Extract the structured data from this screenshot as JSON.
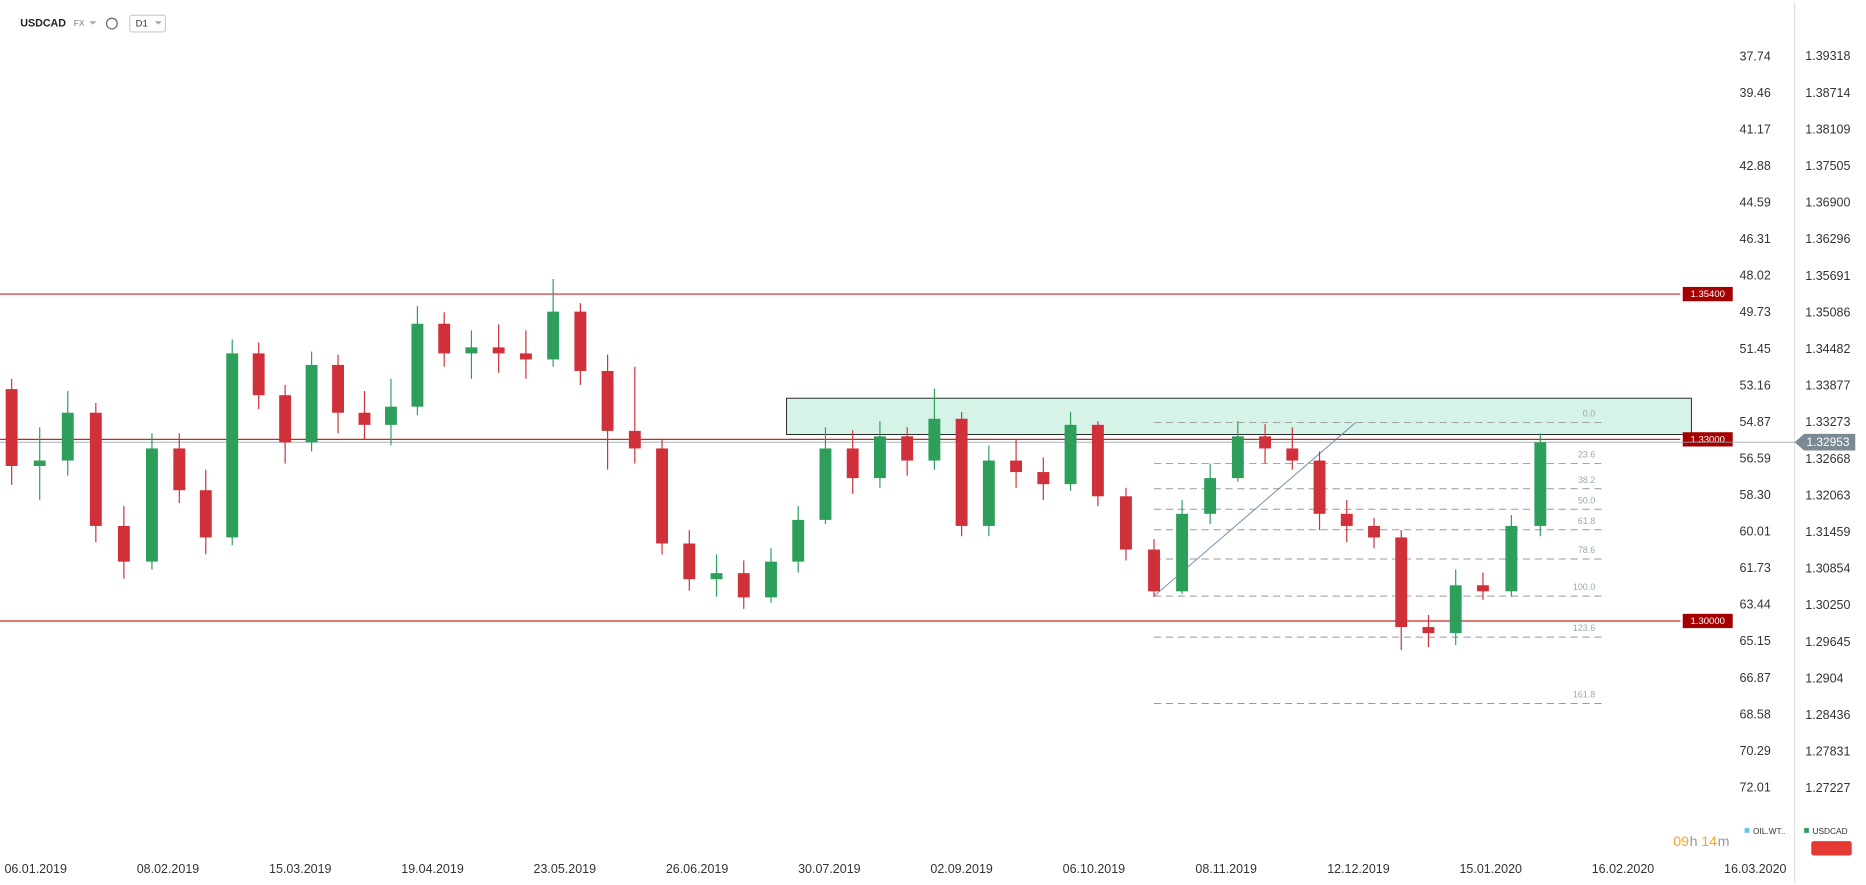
{
  "header": {
    "symbol": "USDCAD",
    "market": "FX",
    "interval": "D1"
  },
  "chart_data": {
    "type": "candlestick",
    "x": [
      "2018-12-31",
      "2019-01-07",
      "2019-01-14",
      "2019-01-21",
      "2019-01-28",
      "2019-02-04",
      "2019-02-11",
      "2019-02-18",
      "2019-02-25",
      "2019-03-04",
      "2019-03-11",
      "2019-03-18",
      "2019-03-25",
      "2019-04-01",
      "2019-04-08",
      "2019-04-15",
      "2019-04-22",
      "2019-04-29",
      "2019-05-06",
      "2019-05-13",
      "2019-05-20",
      "2019-05-27",
      "2019-06-03",
      "2019-06-10",
      "2019-06-17",
      "2019-06-24",
      "2019-07-01",
      "2019-07-08",
      "2019-07-15",
      "2019-07-22",
      "2019-07-29",
      "2019-08-05",
      "2019-08-12",
      "2019-08-19",
      "2019-08-26",
      "2019-09-02",
      "2019-09-09",
      "2019-09-16",
      "2019-09-23",
      "2019-09-30",
      "2019-10-07",
      "2019-10-14",
      "2019-10-21",
      "2019-10-28",
      "2019-11-04",
      "2019-11-11",
      "2019-11-18",
      "2019-11-25",
      "2019-12-02",
      "2019-12-09",
      "2019-12-16",
      "2019-12-23",
      "2019-12-30",
      "2020-01-06",
      "2020-01-13",
      "2020-01-20",
      "2020-01-27"
    ],
    "series": [
      {
        "color": "#2e9e5b",
        "down_color": "#d0303a",
        "open": [
          1.3383,
          1.3256,
          1.3265,
          1.3344,
          1.3157,
          1.3098,
          1.3285,
          1.3216,
          1.3138,
          1.3442,
          1.3373,
          1.3295,
          1.3423,
          1.3344,
          1.3324,
          1.3354,
          1.3491,
          1.3442,
          1.3452,
          1.3442,
          1.3432,
          1.3511,
          1.3413,
          1.3314,
          1.3285,
          1.3128,
          1.3069,
          1.3079,
          1.3039,
          1.3098,
          1.3167,
          1.3285,
          1.3236,
          1.3305,
          1.3265,
          1.3334,
          1.3157,
          1.3265,
          1.3246,
          1.3226,
          1.3324,
          1.3206,
          1.3118,
          1.3049,
          1.3177,
          1.3236,
          1.3305,
          1.3285,
          1.3265,
          1.3177,
          1.3157,
          1.3138,
          1.299,
          1.298,
          1.3059,
          1.3049,
          1.3157
        ],
        "high": [
          1.34,
          1.332,
          1.338,
          1.336,
          1.319,
          1.331,
          1.331,
          1.325,
          1.3465,
          1.346,
          1.339,
          1.3445,
          1.344,
          1.338,
          1.34,
          1.352,
          1.351,
          1.348,
          1.349,
          1.348,
          1.3565,
          1.3525,
          1.344,
          1.342,
          1.33,
          1.315,
          1.311,
          1.31,
          1.312,
          1.319,
          1.332,
          1.3315,
          1.333,
          1.332,
          1.3384,
          1.3345,
          1.329,
          1.33,
          1.327,
          1.3345,
          1.333,
          1.322,
          1.3135,
          1.32,
          1.326,
          1.333,
          1.3325,
          1.332,
          1.328,
          1.32,
          1.317,
          1.315,
          1.301,
          1.3085,
          1.308,
          1.3175,
          1.331
        ],
        "low": [
          1.3225,
          1.32,
          1.324,
          1.313,
          1.307,
          1.3085,
          1.3195,
          1.311,
          1.3125,
          1.335,
          1.326,
          1.328,
          1.331,
          1.33,
          1.329,
          1.334,
          1.342,
          1.34,
          1.341,
          1.34,
          1.342,
          1.339,
          1.325,
          1.326,
          1.311,
          1.305,
          1.304,
          1.302,
          1.303,
          1.308,
          1.316,
          1.321,
          1.322,
          1.324,
          1.325,
          1.314,
          1.314,
          1.322,
          1.32,
          1.3215,
          1.319,
          1.31,
          1.304,
          1.3045,
          1.316,
          1.323,
          1.326,
          1.325,
          1.315,
          1.313,
          1.312,
          1.2952,
          1.2957,
          1.296,
          1.3035,
          1.304,
          1.314
        ],
        "close": [
          1.3256,
          1.3265,
          1.3344,
          1.3157,
          1.3098,
          1.3285,
          1.3216,
          1.3138,
          1.3442,
          1.3373,
          1.3295,
          1.3423,
          1.3344,
          1.3324,
          1.3354,
          1.3491,
          1.3442,
          1.3452,
          1.3442,
          1.3432,
          1.3511,
          1.3413,
          1.3314,
          1.3285,
          1.3128,
          1.3069,
          1.3079,
          1.3039,
          1.3098,
          1.3167,
          1.3285,
          1.3236,
          1.3305,
          1.3265,
          1.3334,
          1.3157,
          1.3265,
          1.3246,
          1.3226,
          1.3324,
          1.3206,
          1.3118,
          1.3049,
          1.3177,
          1.3236,
          1.3305,
          1.3285,
          1.3265,
          1.3177,
          1.3157,
          1.3138,
          1.299,
          1.298,
          1.3059,
          1.3049,
          1.3157,
          1.3295
        ]
      }
    ],
    "ylim": [
      1.26166,
      1.40222
    ],
    "yticks": [
      1.39318,
      1.38714,
      1.38109,
      1.37505,
      {
        "value": 1.369,
        "label": "1.36900"
      },
      1.36296,
      1.35691,
      1.35086,
      1.34482,
      1.33877,
      1.33273,
      1.32668,
      1.32063,
      1.31459,
      1.30854,
      {
        "value": 1.3025,
        "label": "1.30250"
      },
      1.29645,
      1.2904,
      1.28436,
      1.27831,
      1.27227
    ],
    "y2lim": [
      75.05,
      35.17
    ],
    "y2ticks": [
      37.74,
      39.46,
      41.17,
      42.88,
      44.59,
      46.31,
      48.02,
      49.73,
      51.45,
      53.16,
      54.87,
      56.59,
      {
        "value": 58.3,
        "label": "58.30"
      },
      60.01,
      61.73,
      63.44,
      65.15,
      66.87,
      68.58,
      70.29,
      72.01
    ],
    "xticks": [
      {
        "value": "2019-01-06",
        "label": "06.01.2019"
      },
      {
        "value": "2019-02-08",
        "label": "08.02.2019"
      },
      {
        "value": "2019-03-15",
        "label": "15.03.2019"
      },
      {
        "value": "2019-04-19",
        "label": "19.04.2019"
      },
      {
        "value": "2019-05-23",
        "label": "23.05.2019"
      },
      {
        "value": "2019-06-26",
        "label": "26.06.2019"
      },
      {
        "value": "2019-07-30",
        "label": "30.07.2019"
      },
      {
        "value": "2019-09-02",
        "label": "02.09.2019"
      },
      {
        "value": "2019-10-06",
        "label": "06.10.2019"
      },
      {
        "value": "2019-11-08",
        "label": "08.11.2019"
      },
      {
        "value": "2019-12-12",
        "label": "12.12.2019"
      },
      {
        "value": "2020-01-15",
        "label": "15.01.2020"
      },
      {
        "value": "2020-02-16",
        "label": "16.02.2020"
      },
      {
        "value": "2020-03-16",
        "label": "16.03.2020"
      }
    ],
    "grid": false,
    "levels": [
      {
        "value": 1.354,
        "label": "1.35400"
      },
      {
        "value": 1.33,
        "label": "1.33000"
      },
      {
        "value": 1.3,
        "label": "1.30000"
      }
    ],
    "level_color": "#c62828",
    "last_price": 1.32953,
    "zone": {
      "x": [
        "2019-07-19",
        "2020-03-02"
      ],
      "y": [
        1.3308,
        1.3368
      ],
      "color": "#d6f3e8"
    },
    "fib": {
      "x": [
        "2019-10-21",
        "2020-02-11"
      ],
      "prices": [
        1.3041,
        1.3328
      ],
      "levels": [
        {
          "value": 0,
          "label": "0.0"
        },
        23.6,
        38.2,
        {
          "value": 50,
          "label": "50.0"
        },
        61.8,
        78.6,
        {
          "value": 100,
          "label": "100.0"
        },
        123.6,
        161.8
      ]
    },
    "legend": [
      {
        "name": "OIL.WT..",
        "color": "#5bc8e8"
      },
      {
        "name": "USDCAD",
        "color": "#2e9e5b"
      }
    ],
    "countdown": [
      "09",
      "h",
      "14",
      "m"
    ]
  }
}
